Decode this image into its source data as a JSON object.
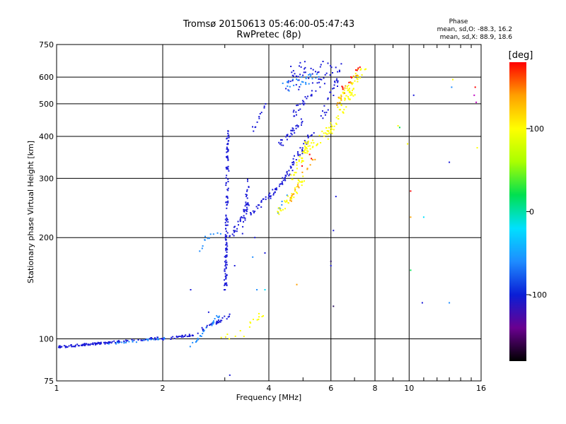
{
  "chart_data": {
    "type": "scatter",
    "title": "Tromsø 20150613 05:46:00-05:47:43",
    "subtitle": "RwPretec (8p)",
    "xlabel": "Frequency [MHz]",
    "ylabel": "Stationary phase Virtual Height [km]",
    "x_scale": "log",
    "y_scale": "log",
    "xlim": [
      1,
      16
    ],
    "ylim": [
      75,
      750
    ],
    "x_ticks": [
      1,
      2,
      4,
      6,
      8,
      10,
      16
    ],
    "y_ticks": [
      75,
      100,
      200,
      300,
      400,
      500,
      600,
      750
    ],
    "x_grid": [
      2,
      4,
      6,
      8,
      10
    ],
    "y_grid": [
      100,
      200,
      300,
      400,
      500,
      600
    ],
    "x_minor": [
      3,
      5,
      7,
      9,
      11,
      12,
      13,
      14,
      15
    ],
    "grid": true,
    "phase_box": {
      "heading": "Phase",
      "line1": "mean, sd,O: -88.3, 16.2",
      "line2": "mean, sd,X:  88.9, 18.6"
    },
    "colorbar": {
      "label": "[deg]",
      "ticks": [
        100,
        0,
        -100
      ],
      "range": [
        -180,
        180
      ],
      "colormap": [
        "#000000",
        "#6a0090",
        "#0a1ed6",
        "#1e8cff",
        "#00e0ff",
        "#00e050",
        "#aaff00",
        "#ffff00",
        "#ffa000",
        "#ff0000"
      ]
    },
    "series": [
      {
        "color": "#1a1ad8",
        "segments": [
          [
            1.0,
            95,
            1.95,
            101,
            8,
            3
          ],
          [
            1.95,
            100,
            2.55,
            104,
            6,
            3
          ],
          [
            2.55,
            107,
            3.1,
            118,
            6,
            5
          ],
          [
            3.0,
            140,
            3.05,
            420,
            6,
            0.02
          ],
          [
            3.1,
            200,
            3.5,
            255,
            6,
            12
          ],
          [
            3.35,
            210,
            3.5,
            300,
            3,
            14
          ],
          [
            3.5,
            235,
            4.05,
            270,
            6,
            10
          ],
          [
            4.05,
            270,
            4.7,
            330,
            6,
            10
          ],
          [
            4.6,
            330,
            5.3,
            410,
            6,
            12
          ],
          [
            4.2,
            370,
            5.0,
            450,
            6,
            12
          ],
          [
            3.5,
            400,
            3.95,
            520,
            2,
            6
          ],
          [
            4.7,
            470,
            5.6,
            590,
            5,
            14
          ],
          [
            4.4,
            580,
            5.8,
            600,
            4,
            25
          ],
          [
            4.4,
            640,
            6.4,
            640,
            4,
            20
          ],
          [
            5.6,
            450,
            6.4,
            640,
            3,
            20
          ]
        ],
        "points": [
          [
            3.2,
            165
          ],
          [
            3.65,
            200
          ],
          [
            3.9,
            180
          ],
          [
            6.2,
            265
          ],
          [
            6.1,
            210
          ],
          [
            6.0,
            165
          ],
          [
            10.3,
            530
          ],
          [
            10.9,
            128
          ],
          [
            13.0,
            335
          ],
          [
            3.1,
            78
          ],
          [
            2.7,
            120
          ],
          [
            2.4,
            140
          ]
        ]
      },
      {
        "color": "#1e8cff",
        "segments": [
          [
            1.4,
            97,
            2.0,
            101,
            3,
            3
          ],
          [
            2.5,
            185,
            2.7,
            205,
            3,
            12
          ],
          [
            2.7,
            205,
            2.95,
            208,
            2,
            8
          ],
          [
            2.4,
            95,
            2.9,
            120,
            4,
            6
          ],
          [
            4.4,
            560,
            5.6,
            610,
            5,
            15
          ],
          [
            4.2,
            240,
            4.55,
            280,
            2,
            8
          ]
        ],
        "points": [
          [
            3.6,
            175
          ],
          [
            3.7,
            140
          ],
          [
            13.0,
            128
          ],
          [
            13.2,
            560
          ]
        ]
      },
      {
        "color": "#ffff00",
        "segments": [
          [
            2.9,
            100,
            3.4,
            105,
            2,
            12
          ],
          [
            3.5,
            110,
            3.9,
            122,
            3,
            8
          ],
          [
            4.2,
            235,
            5.0,
            300,
            6,
            14
          ],
          [
            4.6,
            300,
            5.2,
            380,
            6,
            14
          ],
          [
            5.0,
            370,
            6.0,
            420,
            6,
            16
          ],
          [
            5.8,
            400,
            7.0,
            560,
            6,
            16
          ],
          [
            6.2,
            500,
            7.5,
            650,
            6,
            16
          ]
        ],
        "points": [
          [
            9.3,
            430
          ],
          [
            9.9,
            380
          ],
          [
            13.3,
            590
          ],
          [
            15.6,
            370
          ]
        ]
      },
      {
        "color": "#ffa000",
        "segments": [
          [
            4.4,
            240,
            4.9,
            300,
            2,
            8
          ],
          [
            5.0,
            310,
            5.5,
            360,
            2,
            8
          ],
          [
            6.2,
            500,
            7.2,
            640,
            3,
            12
          ]
        ],
        "points": [
          [
            4.8,
            145
          ],
          [
            10.1,
            230
          ]
        ]
      },
      {
        "color": "#ff0000",
        "segments": [
          [
            6.3,
            540,
            7.3,
            650,
            2,
            8
          ],
          [
            4.9,
            330,
            5.4,
            360,
            1,
            8
          ]
        ],
        "points": [
          [
            10.1,
            275
          ],
          [
            15.4,
            560
          ]
        ]
      },
      {
        "color": "#00e050",
        "segments": [],
        "points": [
          [
            9.4,
            425
          ],
          [
            10.1,
            160
          ]
        ]
      },
      {
        "color": "#00e0ff",
        "segments": [],
        "points": [
          [
            3.9,
            140
          ],
          [
            11.0,
            230
          ]
        ]
      },
      {
        "color": "#2a1060",
        "segments": [],
        "points": [
          [
            6.0,
            170
          ],
          [
            6.1,
            125
          ]
        ]
      },
      {
        "color": "#c000c0",
        "segments": [],
        "points": [
          [
            15.5,
            505
          ],
          [
            15.3,
            530
          ]
        ]
      }
    ]
  }
}
